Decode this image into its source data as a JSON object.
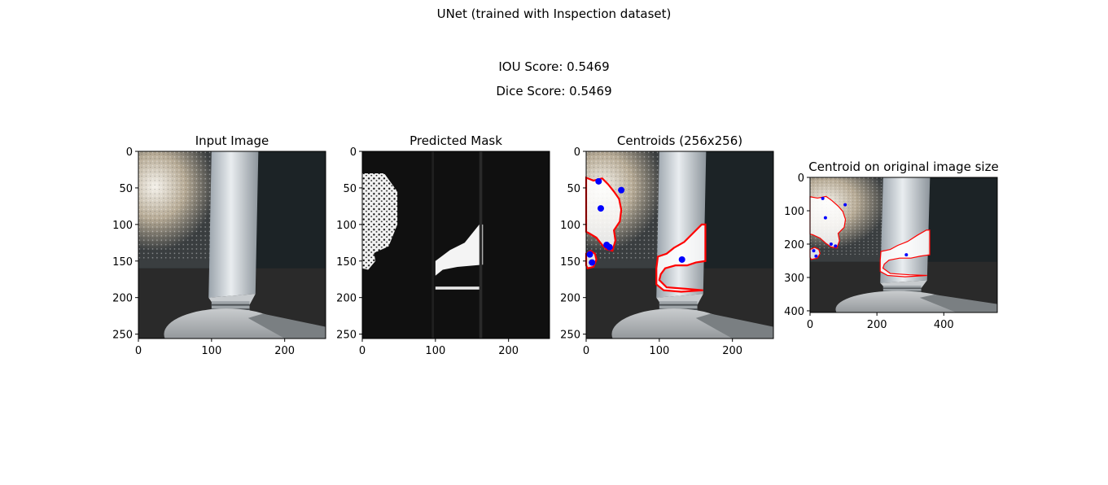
{
  "figure": {
    "title": "UNet (trained with Inspection dataset)",
    "iou_text": "IOU Score: 0.5469",
    "dice_text": "Dice Score: 0.5469"
  },
  "colors": {
    "contour": "#ff0000",
    "centroid": "#0000ff",
    "background": "#ffffff",
    "axis": "#000000"
  },
  "chart_data": [
    {
      "type": "image",
      "title": "Input Image",
      "xlim": [
        0,
        256
      ],
      "ylim": [
        256,
        0
      ],
      "xticks": [
        0,
        100,
        200
      ],
      "yticks": [
        0,
        50,
        100,
        150,
        200,
        250
      ]
    },
    {
      "type": "image",
      "title": "Predicted Mask",
      "xlim": [
        0,
        256
      ],
      "ylim": [
        256,
        0
      ],
      "xticks": [
        0,
        100,
        200
      ],
      "yticks": [
        0,
        50,
        100,
        150,
        200,
        250
      ]
    },
    {
      "type": "scatter",
      "title": "Centroids (256x256)",
      "xlim": [
        0,
        256
      ],
      "ylim": [
        256,
        0
      ],
      "xticks": [
        0,
        100,
        200
      ],
      "yticks": [
        0,
        50,
        100,
        150,
        200,
        250
      ],
      "points": [
        [
          17,
          41
        ],
        [
          20,
          78
        ],
        [
          48,
          53
        ],
        [
          28,
          128
        ],
        [
          32,
          131
        ],
        [
          5,
          141
        ],
        [
          8,
          152
        ],
        [
          131,
          148
        ]
      ],
      "contours": [
        [
          [
            0,
            36
          ],
          [
            10,
            40
          ],
          [
            22,
            37
          ],
          [
            30,
            45
          ],
          [
            38,
            55
          ],
          [
            45,
            65
          ],
          [
            48,
            80
          ],
          [
            46,
            96
          ],
          [
            38,
            108
          ],
          [
            40,
            122
          ],
          [
            36,
            136
          ],
          [
            28,
            134
          ],
          [
            22,
            128
          ],
          [
            14,
            118
          ],
          [
            4,
            112
          ],
          [
            0,
            110
          ]
        ],
        [
          [
            0,
            140
          ],
          [
            6,
            136
          ],
          [
            12,
            140
          ],
          [
            14,
            148
          ],
          [
            10,
            158
          ],
          [
            2,
            160
          ],
          [
            0,
            156
          ]
        ],
        [
          [
            98,
            144
          ],
          [
            110,
            140
          ],
          [
            120,
            132
          ],
          [
            134,
            124
          ],
          [
            146,
            112
          ],
          [
            158,
            100
          ],
          [
            163,
            100
          ],
          [
            163,
            150
          ],
          [
            150,
            152
          ],
          [
            138,
            156
          ],
          [
            122,
            156
          ],
          [
            108,
            160
          ],
          [
            102,
            168
          ],
          [
            100,
            176
          ],
          [
            110,
            186
          ],
          [
            136,
            188
          ],
          [
            160,
            190
          ],
          [
            130,
            192
          ],
          [
            106,
            190
          ],
          [
            96,
            182
          ],
          [
            96,
            160
          ]
        ]
      ]
    },
    {
      "type": "scatter",
      "title": "Centroid on original image size",
      "xlim": [
        0,
        560
      ],
      "ylim": [
        405,
        0
      ],
      "xticks": [
        0,
        200,
        400
      ],
      "yticks": [
        0,
        100,
        200,
        300,
        400
      ],
      "points": [
        [
          38,
          63
        ],
        [
          46,
          121
        ],
        [
          105,
          82
        ],
        [
          63,
          200
        ],
        [
          76,
          206
        ],
        [
          11,
          220
        ],
        [
          18,
          236
        ],
        [
          288,
          232
        ]
      ],
      "contours": [
        [
          [
            0,
            58
          ],
          [
            22,
            62
          ],
          [
            48,
            57
          ],
          [
            66,
            70
          ],
          [
            84,
            86
          ],
          [
            98,
            102
          ],
          [
            106,
            126
          ],
          [
            102,
            150
          ],
          [
            84,
            168
          ],
          [
            88,
            190
          ],
          [
            80,
            212
          ],
          [
            62,
            208
          ],
          [
            48,
            198
          ],
          [
            30,
            182
          ],
          [
            8,
            172
          ],
          [
            0,
            170
          ]
        ],
        [
          [
            0,
            216
          ],
          [
            14,
            210
          ],
          [
            26,
            216
          ],
          [
            30,
            228
          ],
          [
            22,
            242
          ],
          [
            4,
            246
          ],
          [
            0,
            240
          ]
        ],
        [
          [
            212,
            222
          ],
          [
            240,
            216
          ],
          [
            262,
            204
          ],
          [
            292,
            192
          ],
          [
            320,
            174
          ],
          [
            348,
            158
          ],
          [
            358,
            158
          ],
          [
            358,
            232
          ],
          [
            330,
            236
          ],
          [
            302,
            242
          ],
          [
            268,
            242
          ],
          [
            236,
            248
          ],
          [
            222,
            260
          ],
          [
            218,
            272
          ],
          [
            240,
            288
          ],
          [
            298,
            292
          ],
          [
            350,
            294
          ],
          [
            284,
            298
          ],
          [
            232,
            294
          ],
          [
            210,
            282
          ],
          [
            210,
            248
          ]
        ]
      ]
    }
  ]
}
